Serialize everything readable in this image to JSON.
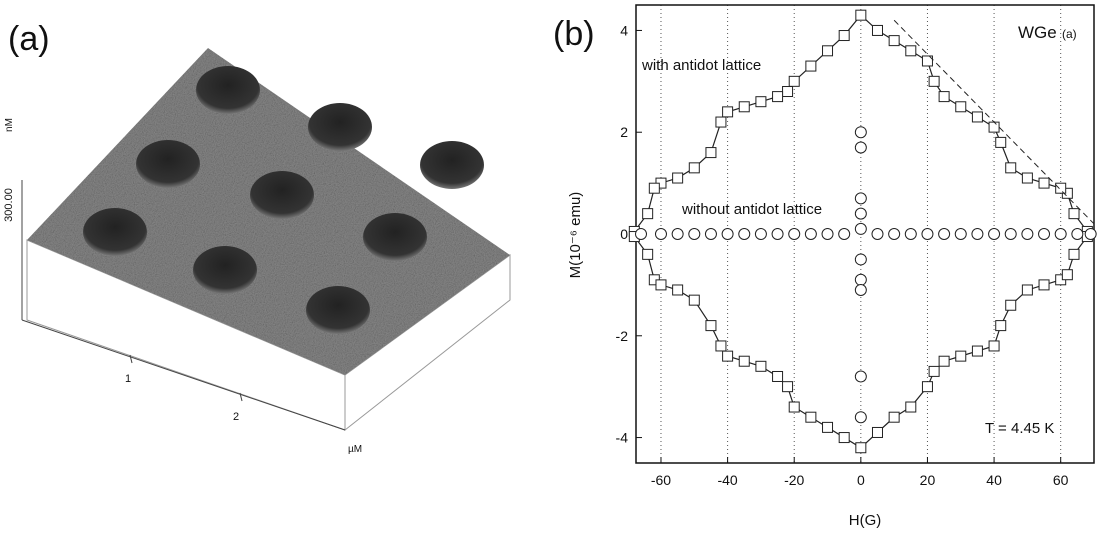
{
  "afm": {
    "panel_label": "(a)",
    "scale_label": "300.00",
    "z_unit": "nM",
    "x_ticks": [
      "1",
      "2"
    ],
    "x_unit": "µM"
  },
  "chart_data": {
    "type": "scatter",
    "panel_label": "(b)",
    "x_label": "H(G)",
    "y_label": "M(10⁻⁶ emu)",
    "annotations": [
      "WGe",
      "(a)",
      "with antidot lattice",
      "without antidot lattice",
      "T = 4.45 K"
    ],
    "xlim": [
      -67.5,
      70
    ],
    "ylim": [
      -4.5,
      4.5
    ],
    "xticks": [
      -60,
      -40,
      -20,
      0,
      20,
      40,
      60
    ],
    "yticks": [
      -4,
      -2,
      0,
      2,
      4
    ],
    "grid": true,
    "series": [
      {
        "marker": "square",
        "color": "#222222",
        "x": [
          68,
          64,
          62,
          60,
          55,
          50,
          45,
          42,
          40,
          35,
          30,
          25,
          22,
          20,
          15,
          10,
          5,
          0,
          -5,
          -10,
          -15,
          -20,
          -22,
          -25,
          -30,
          -35,
          -40,
          -42,
          -45,
          -50,
          -55,
          -60,
          -62,
          -64,
          -68,
          -68,
          -64,
          -62,
          -60,
          -55,
          -50,
          -45,
          -42,
          -40,
          -35,
          -30,
          -25,
          -22,
          -20,
          -15,
          -10,
          -5,
          0,
          5,
          10,
          15,
          20,
          22,
          25,
          30,
          35,
          40,
          42,
          45,
          50,
          55,
          60,
          62,
          64,
          68
        ],
        "values": [
          0.05,
          0.4,
          0.8,
          0.9,
          1.0,
          1.1,
          1.3,
          1.8,
          2.1,
          2.3,
          2.5,
          2.7,
          3.0,
          3.4,
          3.6,
          3.8,
          4.0,
          4.3,
          3.9,
          3.6,
          3.3,
          3.0,
          2.8,
          2.7,
          2.6,
          2.5,
          2.4,
          2.2,
          1.6,
          1.3,
          1.1,
          1.0,
          0.9,
          0.4,
          0.05,
          -0.05,
          -0.4,
          -0.9,
          -1.0,
          -1.1,
          -1.3,
          -1.8,
          -2.2,
          -2.4,
          -2.5,
          -2.6,
          -2.8,
          -3.0,
          -3.4,
          -3.6,
          -3.8,
          -4.0,
          -4.2,
          -3.9,
          -3.6,
          -3.4,
          -3.0,
          -2.7,
          -2.5,
          -2.4,
          -2.3,
          -2.2,
          -1.8,
          -1.4,
          -1.1,
          -1.0,
          -0.9,
          -0.8,
          -0.4,
          -0.05
        ]
      },
      {
        "marker": "circle",
        "color": "#222222",
        "x": [
          -66,
          -60,
          -55,
          -50,
          -45,
          -40,
          -35,
          -30,
          -25,
          -20,
          -15,
          -10,
          -5,
          0,
          0,
          0,
          0,
          0,
          0,
          0,
          0,
          0,
          0,
          5,
          10,
          15,
          20,
          25,
          30,
          35,
          40,
          45,
          50,
          55,
          60,
          65,
          69
        ],
        "values": [
          0,
          0,
          0,
          0,
          0,
          0,
          0,
          0,
          0,
          0,
          0,
          0,
          0,
          2.0,
          1.7,
          0.7,
          0.4,
          0.1,
          -0.5,
          -0.9,
          -1.1,
          -2.8,
          -3.6,
          0,
          0,
          0,
          0,
          0,
          0,
          0,
          0,
          0,
          0,
          0,
          0,
          0,
          0
        ]
      },
      {
        "marker": "none",
        "style": "dashed",
        "color": "#222222",
        "x": [
          10,
          70
        ],
        "values": [
          4.2,
          0.2
        ]
      }
    ]
  }
}
